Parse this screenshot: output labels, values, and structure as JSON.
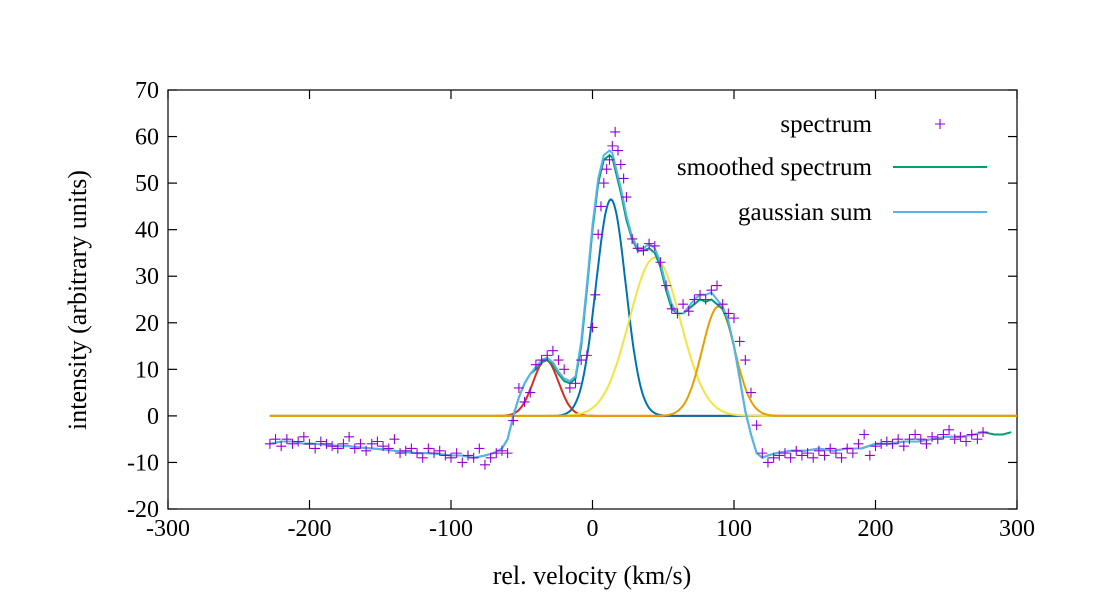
{
  "chart_data": {
    "type": "line",
    "title": "",
    "xlabel": "rel. velocity (km/s)",
    "ylabel": "intensity (arbitrary units)",
    "xlim": [
      -300,
      300
    ],
    "ylim": [
      -20,
      70
    ],
    "xticks": [
      -300,
      -200,
      -100,
      0,
      100,
      200,
      300
    ],
    "xtick_labels": [
      "-300",
      "-200",
      "-100",
      "0",
      "100",
      "200",
      "300"
    ],
    "yticks": [
      -20,
      -10,
      0,
      10,
      20,
      30,
      40,
      50,
      60,
      70
    ],
    "ytick_labels": [
      "-20",
      "-10",
      "0",
      "10",
      "20",
      "30",
      "40",
      "50",
      "60",
      "70"
    ],
    "grid": false,
    "legend_position": "top-right",
    "legend": [
      {
        "label": "spectrum",
        "style": "points",
        "color": "#9400d3"
      },
      {
        "label": "smoothed spectrum",
        "style": "line",
        "color": "#009e73"
      },
      {
        "label": "gaussian sum",
        "style": "line",
        "color": "#56b4e9"
      }
    ],
    "series": [
      {
        "name": "spectrum",
        "style": "points",
        "color": "#9400d3",
        "x": [
          -228,
          -224,
          -220,
          -216,
          -212,
          -208,
          -204,
          -200,
          -196,
          -192,
          -188,
          -184,
          -180,
          -176,
          -172,
          -168,
          -164,
          -160,
          -156,
          -152,
          -148,
          -144,
          -140,
          -136,
          -132,
          -128,
          -124,
          -120,
          -116,
          -112,
          -108,
          -104,
          -100,
          -96,
          -92,
          -88,
          -84,
          -80,
          -76,
          -72,
          -68,
          -64,
          -60,
          -56,
          -52,
          -48,
          -44,
          -40,
          -36,
          -32,
          -28,
          -24,
          -20,
          -16,
          -12,
          -8,
          -4,
          0,
          2,
          4,
          6,
          8,
          10,
          12,
          14,
          16,
          18,
          20,
          22,
          24,
          28,
          32,
          36,
          40,
          44,
          48,
          52,
          56,
          60,
          64,
          68,
          72,
          76,
          80,
          84,
          88,
          92,
          96,
          100,
          104,
          108,
          112,
          116,
          120,
          124,
          128,
          132,
          136,
          140,
          144,
          148,
          152,
          156,
          160,
          164,
          168,
          172,
          176,
          180,
          184,
          188,
          192,
          196,
          200,
          204,
          208,
          212,
          216,
          220,
          224,
          228,
          232,
          236,
          240,
          244,
          248,
          252,
          256,
          260,
          264,
          268,
          272,
          276
        ],
        "y": [
          -6,
          -5,
          -6.5,
          -5,
          -6,
          -5.5,
          -4.5,
          -6,
          -7,
          -5.5,
          -6,
          -6.5,
          -7,
          -6,
          -4.5,
          -7,
          -6,
          -7.5,
          -6,
          -5.5,
          -6.5,
          -7,
          -5,
          -8,
          -7.5,
          -7,
          -8,
          -9,
          -7,
          -8,
          -7.5,
          -8.5,
          -9,
          -8,
          -10,
          -8.5,
          -9,
          -7,
          -10.5,
          -9,
          -8,
          -7.5,
          -8,
          -1,
          6,
          3,
          5,
          11,
          12,
          13,
          14,
          12,
          10,
          6,
          7,
          12,
          13,
          19,
          26,
          39,
          45,
          50,
          53,
          55,
          58,
          61,
          57,
          54,
          51,
          47,
          38,
          36,
          35.5,
          37,
          36.5,
          33,
          28,
          23,
          22,
          24,
          22.5,
          25,
          26,
          25,
          27,
          28,
          24,
          22,
          21,
          16,
          12,
          5,
          -2,
          -8,
          -10,
          -9,
          -8.5,
          -8,
          -9,
          -7.5,
          -8.5,
          -8,
          -9,
          -7.5,
          -8.5,
          -7,
          -8,
          -9,
          -7,
          -8,
          -6,
          -4,
          -8.5,
          -6.5,
          -6,
          -5.5,
          -6,
          -5,
          -6.5,
          -5,
          -4,
          -5,
          -6,
          -4.5,
          -5,
          -4,
          -3,
          -5,
          -4.5,
          -5.5,
          -4,
          -5,
          -3.5
        ]
      },
      {
        "name": "smoothed spectrum",
        "style": "line",
        "color": "#009e73",
        "x": [
          -228,
          -220,
          -212,
          -204,
          -196,
          -188,
          -180,
          -172,
          -164,
          -156,
          -148,
          -140,
          -132,
          -124,
          -116,
          -108,
          -100,
          -92,
          -84,
          -76,
          -70,
          -64,
          -60,
          -56,
          -52,
          -48,
          -44,
          -40,
          -36,
          -32,
          -28,
          -24,
          -20,
          -16,
          -12,
          -8,
          -4,
          0,
          4,
          8,
          12,
          14,
          16,
          20,
          24,
          28,
          32,
          36,
          40,
          44,
          48,
          52,
          56,
          60,
          64,
          68,
          72,
          76,
          80,
          84,
          88,
          92,
          96,
          100,
          104,
          108,
          112,
          116,
          120,
          124,
          130,
          140,
          150,
          160,
          170,
          180,
          190,
          200,
          210,
          220,
          230,
          240,
          250,
          260,
          270,
          276,
          284,
          290,
          296
        ],
        "y": [
          -6,
          -5.5,
          -5.5,
          -6,
          -6,
          -6.2,
          -6.5,
          -6.5,
          -6.8,
          -7,
          -7.2,
          -7.5,
          -7.8,
          -8,
          -8,
          -8.2,
          -8.5,
          -8.5,
          -9,
          -8.5,
          -8,
          -7,
          -5,
          0,
          4,
          7,
          9,
          10,
          11.5,
          12,
          11,
          9,
          7.5,
          7,
          8,
          15,
          27,
          40,
          50,
          55,
          56,
          55.5,
          53,
          48,
          42,
          38,
          35.5,
          35.5,
          36,
          35,
          32,
          27,
          23,
          22,
          22,
          23,
          24,
          25,
          24.5,
          25,
          24,
          23,
          20,
          15,
          8,
          1,
          -4,
          -8,
          -9,
          -8.5,
          -8,
          -7.5,
          -7.5,
          -7,
          -7.5,
          -7,
          -7,
          -6,
          -6,
          -5.5,
          -5.5,
          -5,
          -4.5,
          -4.5,
          -4,
          -3.5,
          -4,
          -4,
          -3.5
        ]
      },
      {
        "name": "gaussian sum",
        "style": "line",
        "color": "#56b4e9",
        "x": [
          -228,
          -220,
          -212,
          -204,
          -196,
          -188,
          -180,
          -172,
          -164,
          -156,
          -148,
          -140,
          -132,
          -124,
          -116,
          -108,
          -100,
          -92,
          -84,
          -76,
          -70,
          -64,
          -60,
          -56,
          -52,
          -48,
          -44,
          -40,
          -36,
          -32,
          -28,
          -24,
          -20,
          -16,
          -12,
          -8,
          -4,
          0,
          4,
          8,
          12,
          14,
          16,
          20,
          24,
          28,
          32,
          36,
          40,
          44,
          48,
          52,
          56,
          60,
          64,
          68,
          72,
          76,
          80,
          84,
          88,
          92,
          96,
          100,
          104,
          108,
          112,
          116,
          120,
          124,
          130,
          140,
          150,
          160,
          170,
          180,
          190,
          200,
          210,
          220,
          230,
          240,
          250,
          260,
          270,
          276
        ],
        "y": [
          -6,
          -5.5,
          -5.5,
          -6,
          -6,
          -6.2,
          -6.5,
          -6.5,
          -6.8,
          -7,
          -7.2,
          -7.5,
          -7.8,
          -8,
          -8,
          -8.2,
          -8.5,
          -8.5,
          -9,
          -8.5,
          -8,
          -7,
          -5,
          0,
          4,
          7,
          9,
          10.5,
          12,
          12.5,
          11.5,
          9.5,
          8,
          7.5,
          8.5,
          16,
          28,
          41,
          51,
          56,
          57,
          56.5,
          54,
          49,
          43,
          38.5,
          36,
          36,
          37,
          36,
          33,
          28,
          24,
          22,
          22,
          23.5,
          25,
          26,
          26,
          26.5,
          25,
          23.5,
          20.5,
          15,
          8,
          1,
          -4,
          -8,
          -9,
          -8.5,
          -8,
          -7.5,
          -7.5,
          -7,
          -7.5,
          -7,
          -7,
          -6,
          -6,
          -5.5,
          -5.5,
          -5,
          -4.5,
          -4.5,
          -4,
          -3.5
        ]
      },
      {
        "name": "",
        "style": "line",
        "color": "#d62d20",
        "gaussian": {
          "amplitude": 12,
          "center": -33,
          "sigma": 9
        },
        "x_range": [
          -228,
          300
        ]
      },
      {
        "name": "",
        "style": "line",
        "color": "#0072b2",
        "gaussian": {
          "amplitude": 46.5,
          "center": 13,
          "sigma": 10.5
        },
        "x_range": [
          -228,
          300
        ]
      },
      {
        "name": "",
        "style": "line",
        "color": "#f0e442",
        "gaussian": {
          "amplitude": 34,
          "center": 44,
          "sigma": 18
        },
        "x_range": [
          -228,
          300
        ]
      },
      {
        "name": "",
        "style": "line",
        "color": "#e69f00",
        "gaussian": {
          "amplitude": 23.5,
          "center": 89,
          "sigma": 11.5
        },
        "x_range": [
          -228,
          300
        ]
      }
    ]
  }
}
